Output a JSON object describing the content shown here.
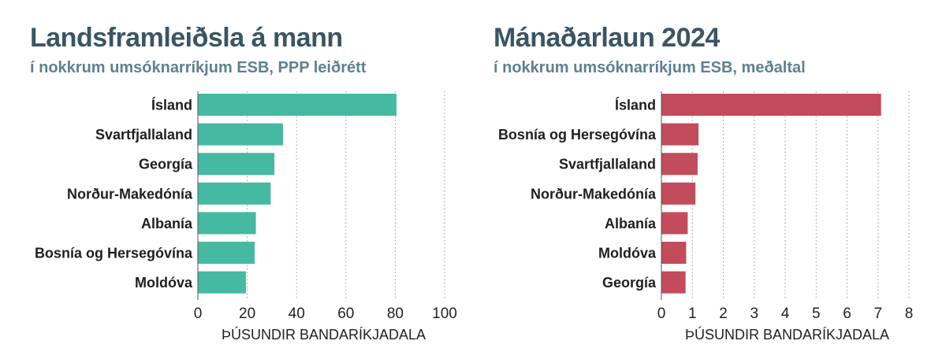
{
  "chart_data": [
    {
      "type": "bar",
      "orientation": "horizontal",
      "title": "Landsframleiðsla á mann",
      "subtitle": "í nokkrum umsóknarríkjum ESB, PPP leiðrétt",
      "categories": [
        "Ísland",
        "Svartfjallaland",
        "Georgía",
        "Norður-Makedónía",
        "Albanía",
        "Bosnía og Hersegóvína",
        "Moldóva"
      ],
      "values": [
        80.5,
        34.5,
        31,
        29.5,
        23.5,
        23,
        19.5
      ],
      "xlabel": "ÞÚSUNDIR BANDARÍKJADALA",
      "xlim": [
        0,
        100
      ],
      "xticks": [
        0,
        20,
        40,
        60,
        80,
        100
      ],
      "grid": "vertical dotted",
      "color": "#45b9a1"
    },
    {
      "type": "bar",
      "orientation": "horizontal",
      "title": "Mánaðarlaun 2024",
      "subtitle": "í nokkrum umsóknarríkjum ESB, meðaltal",
      "categories": [
        "Ísland",
        "Bosnía og Hersegóvína",
        "Svartfjallaland",
        "Norður-Makedónía",
        "Albanía",
        "Moldóva",
        "Georgía"
      ],
      "values": [
        7.1,
        1.2,
        1.17,
        1.1,
        0.85,
        0.8,
        0.78
      ],
      "xlabel": "ÞÚSUNDIR BANDARÍKJADALA",
      "xlim": [
        0,
        8
      ],
      "xticks": [
        0,
        1,
        2,
        3,
        4,
        5,
        6,
        7,
        8
      ],
      "grid": "vertical dotted",
      "color": "#c24b5c"
    }
  ]
}
